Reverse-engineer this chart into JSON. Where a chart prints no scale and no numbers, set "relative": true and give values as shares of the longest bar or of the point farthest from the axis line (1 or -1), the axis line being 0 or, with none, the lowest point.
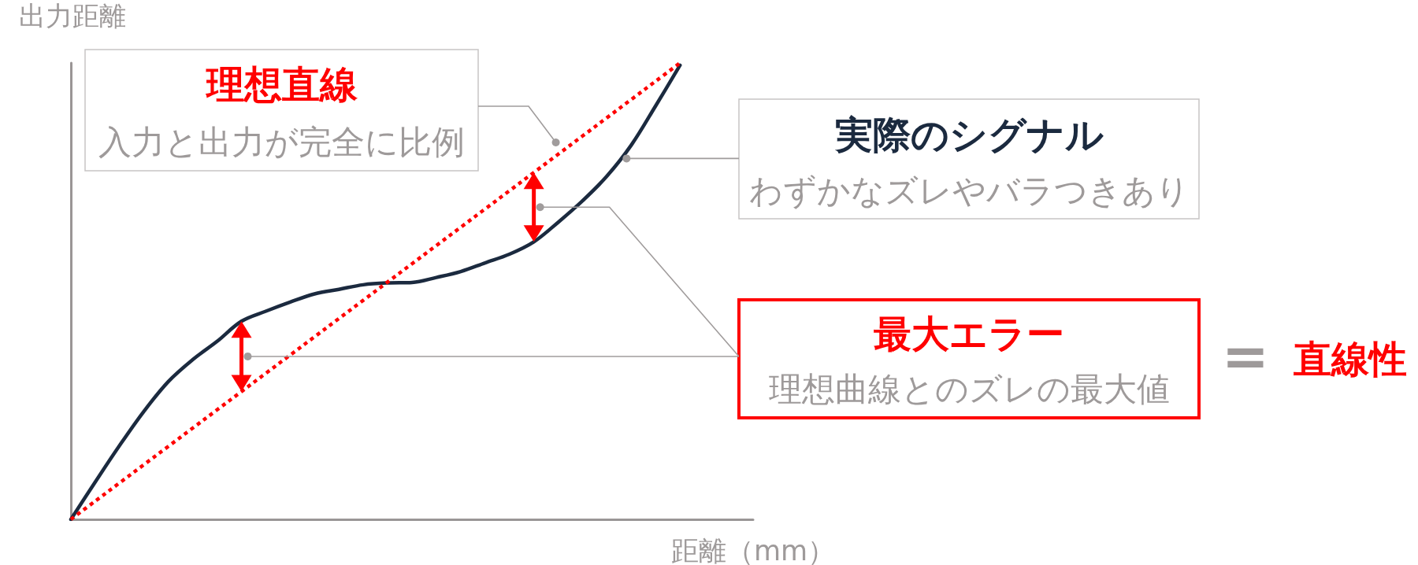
{
  "chart_data": {
    "type": "line",
    "relative": true,
    "xlabel": "距離（mm）",
    "ylabel": "出力距離",
    "categories": [
      null,
      null,
      null,
      null,
      null,
      null,
      null,
      null,
      null,
      null,
      null,
      null,
      null,
      null,
      null,
      null,
      null,
      null,
      null,
      null,
      null,
      null,
      null,
      null,
      null,
      null,
      null,
      null,
      null
    ],
    "series": [
      {
        "name": "理想直線",
        "color": "#ff0000",
        "line_style": "dotted",
        "values": [
          0,
          0.04,
          0.08,
          0.12,
          0.16,
          0.2,
          0.24,
          0.28,
          0.32,
          0.36,
          0.4,
          0.44,
          0.48,
          0.52,
          0.56,
          0.6,
          0.64,
          0.68,
          0.72,
          0.76,
          0.8,
          0.84,
          0.88,
          0.92,
          0.96,
          1,
          null,
          null,
          null
        ]
      },
      {
        "name": "実際のシグナル",
        "color": "#1b2a3f",
        "line_style": "solid",
        "values": [
          0,
          0.082,
          0.162,
          0.237,
          0.302,
          0.35,
          0.39,
          0.434,
          0.456,
          0.476,
          0.494,
          0.504,
          0.514,
          0.518,
          0.519,
          0.53,
          0.543,
          0.562,
          0.581,
          0.608,
          0.651,
          0.698,
          0.752,
          0.82,
          0.906,
          0.995,
          null,
          null,
          null
        ]
      }
    ],
    "annotations": [
      "入力と出力が完全に比例",
      "わずかなズレやバラつきあり",
      "最大エラー",
      "理想曲線とのズレの最大値",
      "=",
      "直線性"
    ]
  }
}
